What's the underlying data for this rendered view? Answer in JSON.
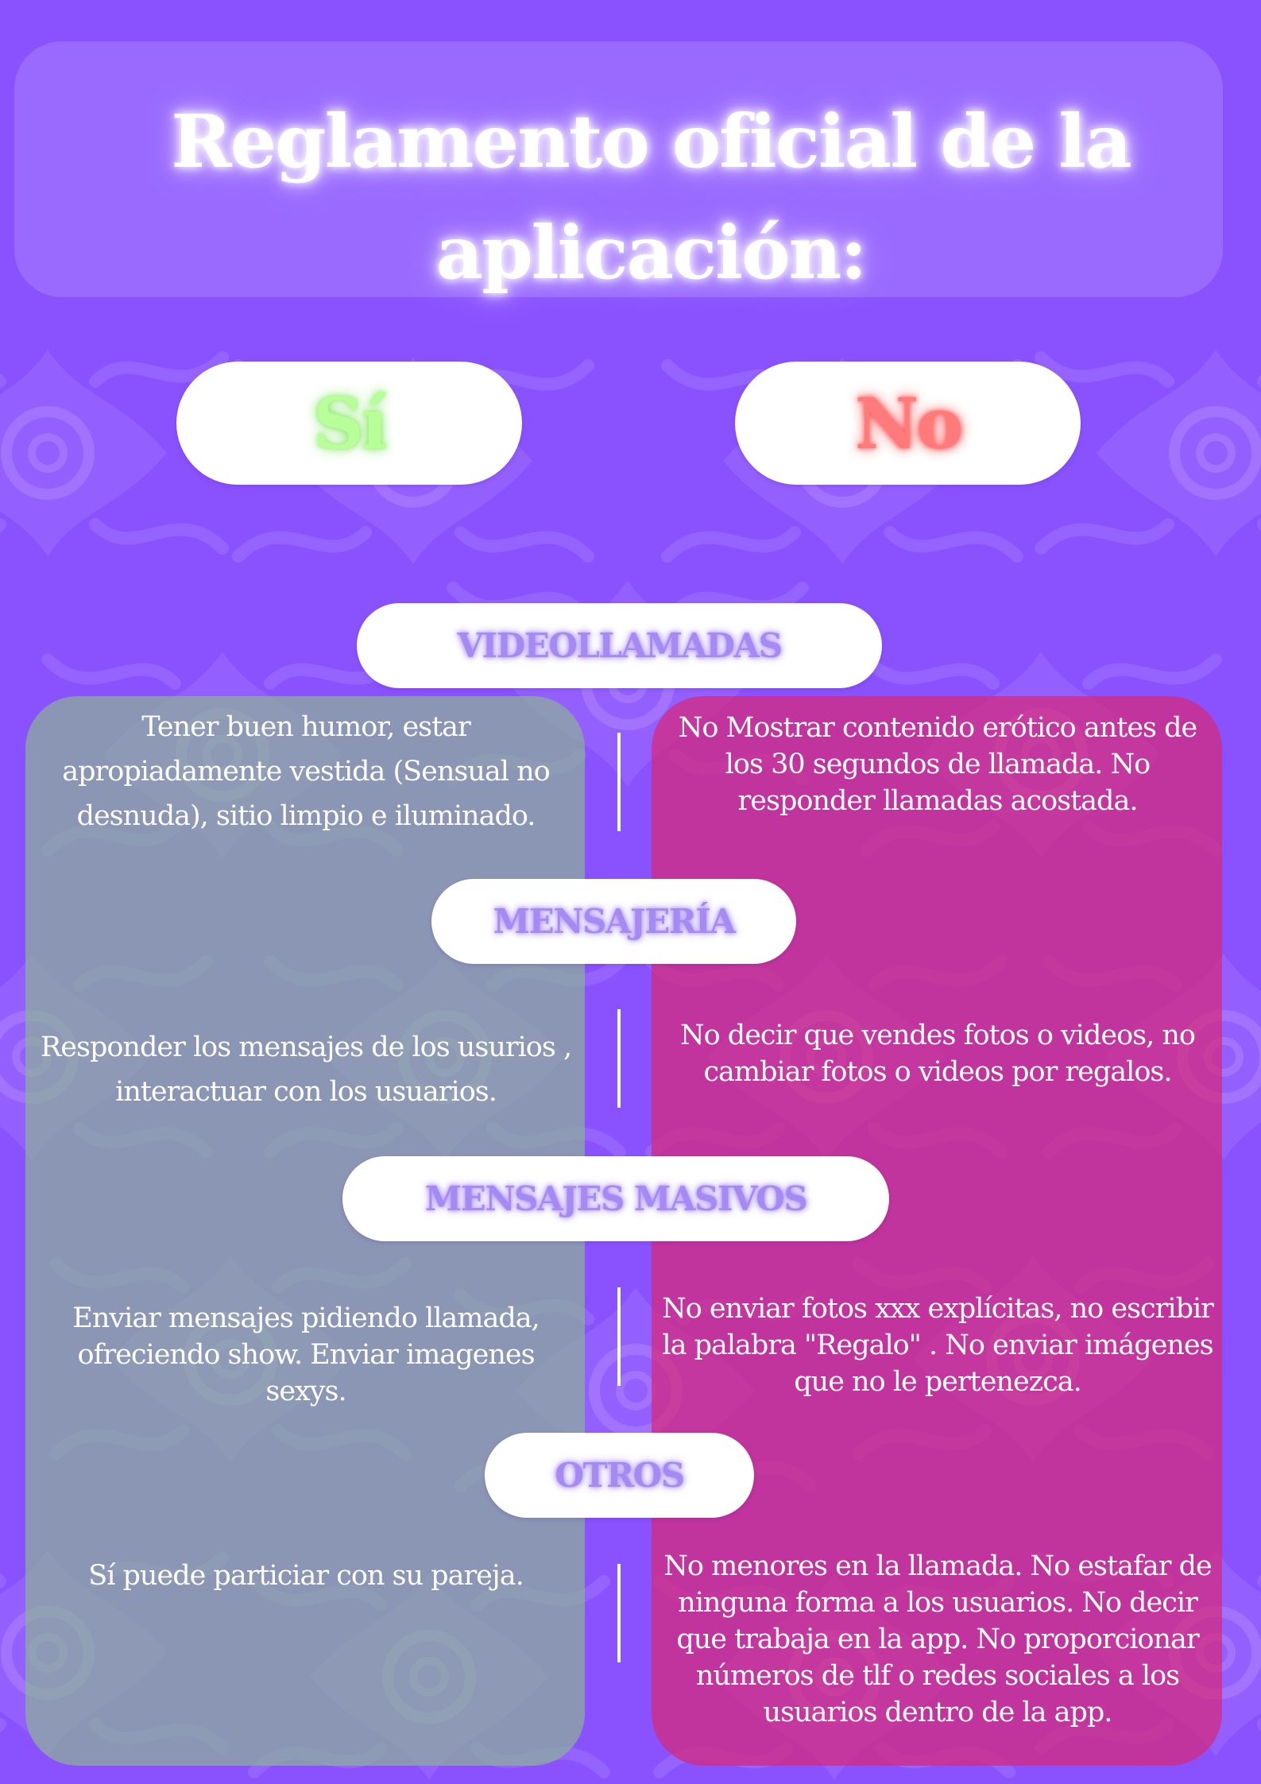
{
  "header": {
    "title": "Reglamento oficial de la aplicación:"
  },
  "columns": {
    "yes_label": "Sí",
    "no_label": "No"
  },
  "sections": [
    {
      "heading": "VIDEOLLAMADAS",
      "yes": "Tener buen humor, estar apropiadamente vestida (Sensual no desnuda), sitio limpio e iluminado.",
      "no": "No Mostrar contenido erótico antes de los 30 segundos de llamada. No responder llamadas acostada."
    },
    {
      "heading": "MENSAJERÍA",
      "yes": "Responder los mensajes de los usurios , interactuar con los usuarios.",
      "no": "No decir que vendes fotos o videos, no cambiar fotos o videos por regalos."
    },
    {
      "heading": "MENSAJES MASIVOS",
      "yes": "Enviar mensajes pidiendo llamada, ofreciendo show. Enviar imagenes sexys.",
      "no": "No enviar fotos xxx explícitas, no escribir la palabra \"Regalo\" . No enviar imágenes que no le pertenezca."
    },
    {
      "heading": "OTROS",
      "yes": "Sí puede particiar con su pareja.",
      "no": "No menores en la llamada. No estafar de ninguna forma a los usuarios. No decir que trabaja en la app. No proporcionar números de tlf o redes sociales a los usuarios dentro de la app."
    }
  ],
  "colors": {
    "background": "#8a52ff",
    "yes_panel": "#8cb496",
    "no_panel": "#d72878",
    "yes_label": "#b8ff9a",
    "no_label": "#ff7a7a",
    "section_heading": "#a58af2"
  }
}
